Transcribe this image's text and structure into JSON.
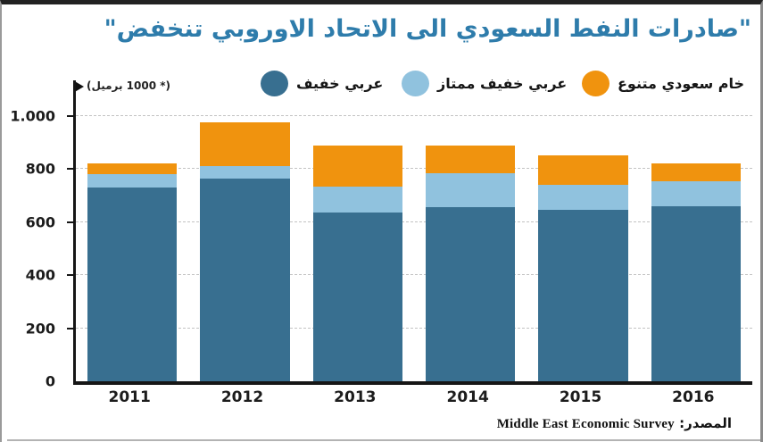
{
  "title": {
    "text": "\"صادرات النفط السعودي الى الاتحاد الاوروبي تنخفض\"",
    "color": "#2e7cab"
  },
  "unit_label": {
    "text": "(* 1000 برميل)"
  },
  "legend": {
    "items": [
      {
        "label": "عربي خفيف",
        "color": "#386f90",
        "x": 290
      },
      {
        "label": "عربي خفيف ممتاز",
        "color": "#90c2de",
        "x": 448
      },
      {
        "label": "خام سعودي متنوع",
        "color": "#f0930e",
        "x": 650
      }
    ]
  },
  "source": {
    "label_ar": "المصدر:",
    "text_en": "Middle East Economic Survey"
  },
  "chart_data": {
    "type": "bar",
    "stacked": true,
    "title": "صادرات النفط السعودي الى الاتحاد الاوروبي تنخفض",
    "ylabel": "(* 1000 برميل)",
    "xlabel": "",
    "categories": [
      "2011",
      "2012",
      "2013",
      "2014",
      "2015",
      "2016"
    ],
    "series": [
      {
        "name": "عربي خفيف",
        "color": "#386f90",
        "values": [
          730,
          765,
          635,
          655,
          645,
          660
        ]
      },
      {
        "name": "عربي خفيف ممتاز",
        "color": "#90c2de",
        "values": [
          50,
          45,
          100,
          130,
          95,
          95
        ]
      },
      {
        "name": "خام سعودي متنوع",
        "color": "#f0930e",
        "values": [
          40,
          165,
          155,
          105,
          110,
          65
        ]
      }
    ],
    "totals": [
      820,
      975,
      890,
      890,
      850,
      820
    ],
    "yticks": [
      {
        "value": 0,
        "label": "0"
      },
      {
        "value": 200,
        "label": "200"
      },
      {
        "value": 400,
        "label": "400"
      },
      {
        "value": 600,
        "label": "600"
      },
      {
        "value": 800,
        "label": "800"
      },
      {
        "value": 1000,
        "label": "1.000"
      }
    ],
    "ylim": [
      0,
      1134
    ],
    "grid": "horizontal-dashed",
    "legend_position": "top",
    "source": "Middle East Economic Survey"
  },
  "colors": {
    "title": "#2e7cab",
    "axis": "#161616",
    "gridline": "#c3c3c3",
    "frame_top": "#222222",
    "frame_side": "#9a9a9a"
  }
}
